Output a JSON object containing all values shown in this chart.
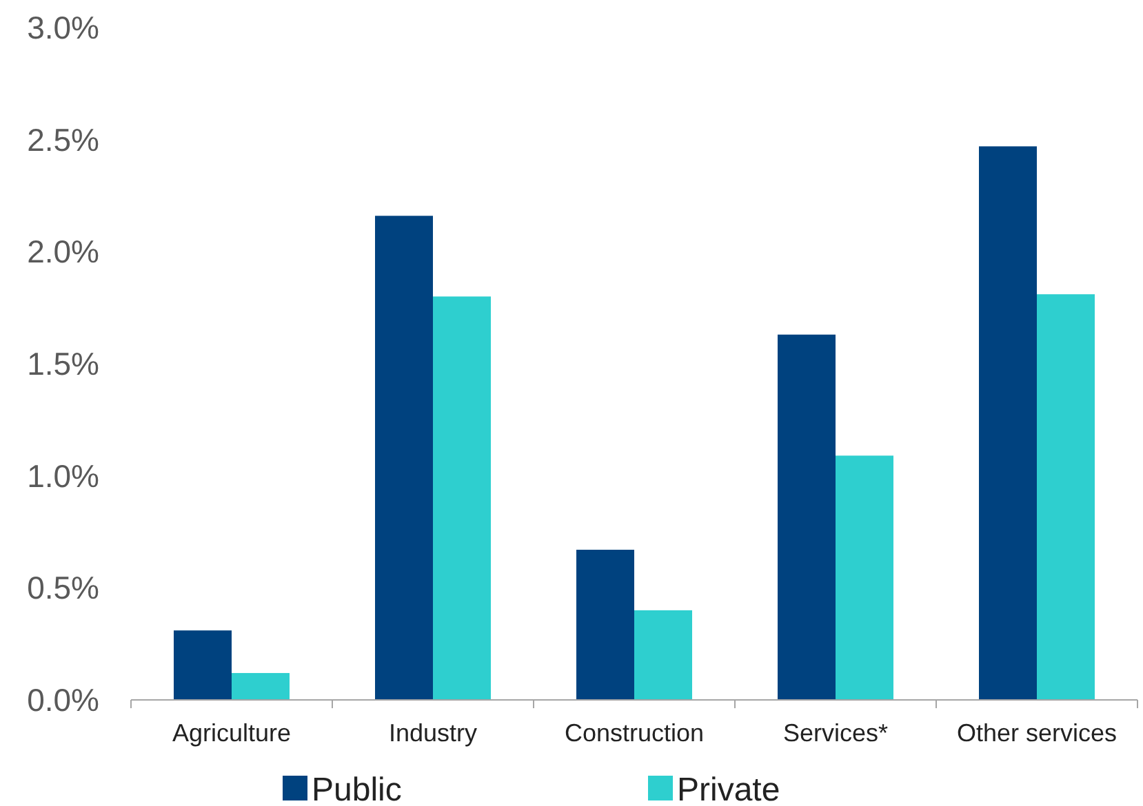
{
  "chart_data": {
    "type": "bar",
    "categories": [
      "Agriculture",
      "Industry",
      "Construction",
      "Services*",
      "Other services"
    ],
    "series": [
      {
        "name": "Public",
        "color": "#00427f",
        "values": [
          0.31,
          2.16,
          0.67,
          1.63,
          2.47
        ]
      },
      {
        "name": "Private",
        "color": "#2ecfcf",
        "values": [
          0.12,
          1.8,
          0.4,
          1.09,
          1.81
        ]
      }
    ],
    "ylim": [
      0,
      3
    ],
    "yticks": [
      {
        "value": 0,
        "label": "0.0%"
      },
      {
        "value": 0.5,
        "label": "0.5%"
      },
      {
        "value": 1,
        "label": "1.0%"
      },
      {
        "value": 1.5,
        "label": "1.5%"
      },
      {
        "value": 2,
        "label": "2.0%"
      },
      {
        "value": 2.5,
        "label": "2.5%"
      },
      {
        "value": 3,
        "label": "3.0%"
      }
    ],
    "grid": false,
    "legend": "bottom"
  }
}
